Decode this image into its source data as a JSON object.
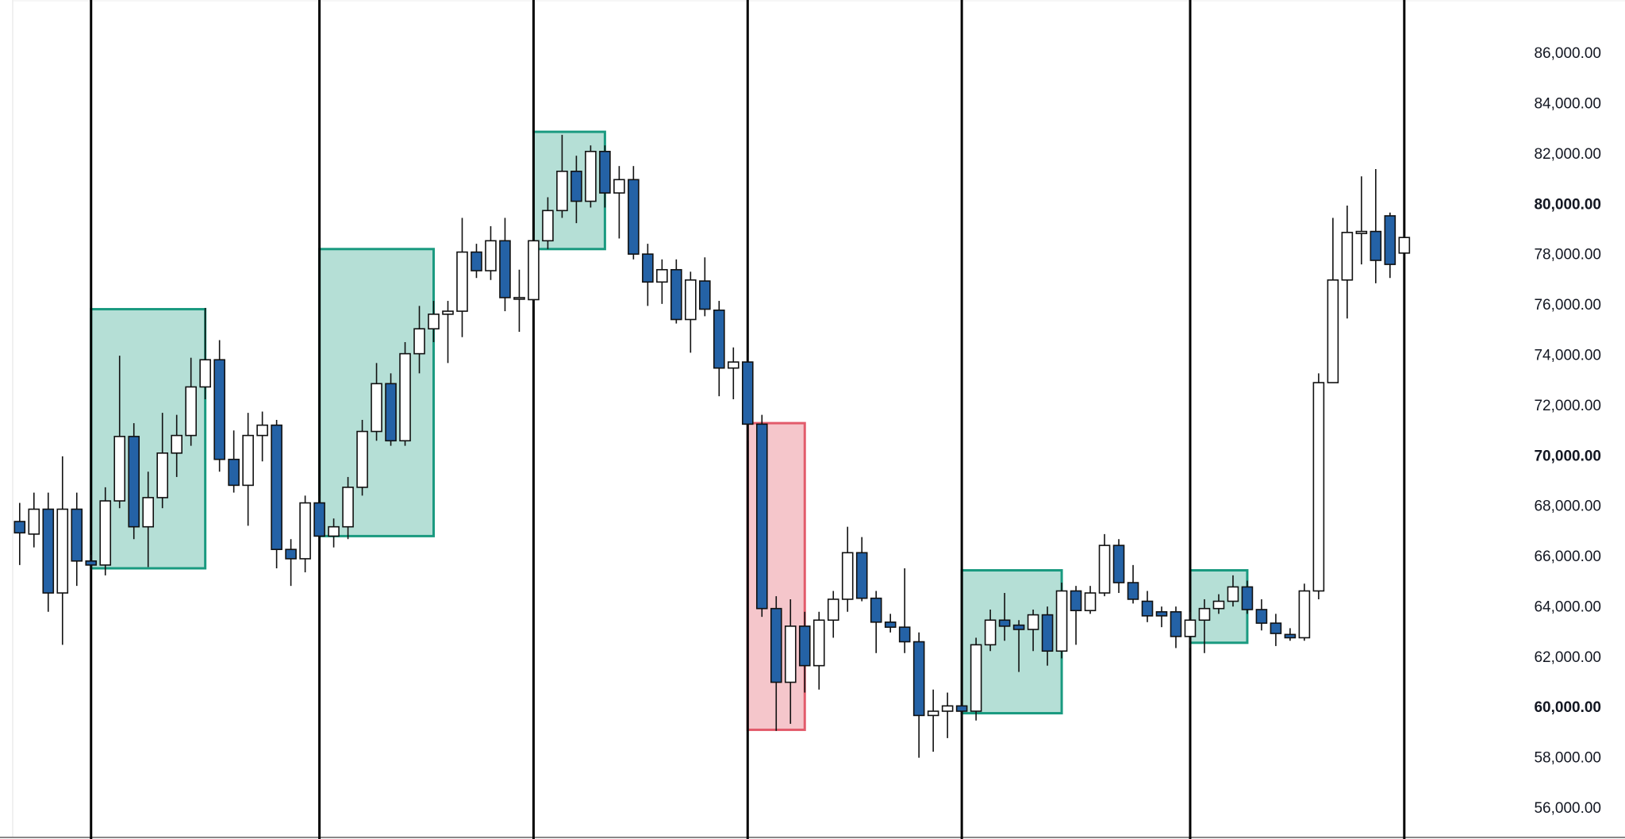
{
  "chart_data": {
    "type": "candlestick",
    "up_color": "#ffffff",
    "down_color": "#2462a6",
    "wick_color": "#111111",
    "ylim": [
      54800,
      88150
    ],
    "yticks": [
      {
        "value": 56000,
        "label": "56,000.00"
      },
      {
        "value": 58000,
        "label": "58,000.00"
      },
      {
        "value": 60000,
        "label": "60,000.00"
      },
      {
        "value": 62000,
        "label": "62,000.00"
      },
      {
        "value": 64000,
        "label": "64,000.00"
      },
      {
        "value": 66000,
        "label": "66,000.00"
      },
      {
        "value": 68000,
        "label": "68,000.00"
      },
      {
        "value": 70000,
        "label": "70,000.00"
      },
      {
        "value": 72000,
        "label": "72,000.00"
      },
      {
        "value": 74000,
        "label": "74,000.00"
      },
      {
        "value": 76000,
        "label": "76,000.00"
      },
      {
        "value": 78000,
        "label": "78,000.00"
      },
      {
        "value": 80000,
        "label": "80,000.00"
      },
      {
        "value": 82000,
        "label": "82,000.00"
      },
      {
        "value": 84000,
        "label": "84,000.00"
      },
      {
        "value": 86000,
        "label": "86,000.00"
      }
    ],
    "open": [
      67420,
      66920,
      67910,
      64580,
      67910,
      65850,
      65690,
      68240,
      70800,
      67210,
      68370,
      70140,
      70840,
      72770,
      73850,
      69890,
      68860,
      70840,
      71250,
      66310,
      65940,
      68160,
      66840,
      67210,
      68780,
      71000,
      72900,
      70630,
      74090,
      75080,
      75660,
      75780,
      78130,
      77390,
      78580,
      76280,
      76240,
      78580,
      79780,
      81340,
      80150,
      82130,
      80480,
      81010,
      78050,
      76940,
      77430,
      75450,
      76980,
      75820,
      73520,
      73760,
      71290,
      63960,
      61030,
      63260,
      61690,
      63500,
      64330,
      66180,
      64370,
      63420,
      63220,
      62640,
      59710,
      59880,
      60090,
      59880,
      62520,
      63500,
      63300,
      63130,
      63710,
      62270,
      64660,
      63880,
      64580,
      66470,
      64990,
      64250,
      63830,
      63830,
      62850,
      63500,
      63960,
      64250,
      64820,
      63920,
      63380,
      62930,
      62800,
      64660,
      72940,
      77020,
      78870,
      78950,
      79570,
      78090
    ],
    "high": [
      68160,
      68570,
      68570,
      70010,
      68570,
      66100,
      68780,
      74010,
      71330,
      69400,
      71740,
      71660,
      73930,
      75910,
      74630,
      71040,
      71740,
      71790,
      71460,
      66720,
      68450,
      68450,
      67540,
      69190,
      71460,
      73720,
      73310,
      74550,
      75990,
      76190,
      76190,
      79490,
      78460,
      79160,
      79490,
      77430,
      79000,
      80310,
      82790,
      81960,
      82370,
      82370,
      81550,
      81550,
      78460,
      77840,
      77840,
      77350,
      77920,
      76190,
      74340,
      74130,
      71660,
      64450,
      64330,
      63830,
      63830,
      64660,
      67210,
      66800,
      64660,
      63750,
      65560,
      63010,
      60740,
      60620,
      60330,
      62800,
      63920,
      64580,
      63500,
      63920,
      64040,
      64990,
      64860,
      64860,
      66920,
      66720,
      65690,
      64660,
      64040,
      64040,
      63830,
      64330,
      64530,
      65280,
      65070,
      64330,
      63750,
      63180,
      64950,
      73310,
      79490,
      79980,
      81140,
      81430,
      79700,
      78870
    ],
    "low": [
      65690,
      66390,
      63830,
      62520,
      64860,
      65480,
      65280,
      67950,
      66720,
      65610,
      67950,
      69190,
      70430,
      72280,
      69400,
      68570,
      67250,
      69810,
      65560,
      64860,
      65400,
      66310,
      66390,
      66720,
      68450,
      70630,
      70430,
      70430,
      73310,
      74550,
      73720,
      74750,
      77100,
      77020,
      75780,
      74960,
      75990,
      78250,
      79490,
      79280,
      79900,
      79900,
      78670,
      77840,
      75990,
      76070,
      75290,
      74130,
      75580,
      72400,
      72280,
      70630,
      63630,
      59100,
      59380,
      60620,
      60740,
      62800,
      63830,
      64250,
      62190,
      63010,
      62190,
      58030,
      58270,
      58810,
      59630,
      59510,
      62270,
      62680,
      61440,
      62270,
      61690,
      61980,
      62520,
      63750,
      64450,
      64580,
      64160,
      63420,
      63220,
      62390,
      62390,
      62190,
      63750,
      64040,
      63750,
      63090,
      62470,
      62680,
      62680,
      64330,
      72940,
      75490,
      77640,
      76890,
      77100,
      77920
    ],
    "close": [
      66970,
      67910,
      64580,
      67910,
      65850,
      65690,
      68240,
      70800,
      67210,
      68370,
      70140,
      70840,
      72770,
      73850,
      69890,
      68860,
      70840,
      71250,
      66310,
      65940,
      68160,
      66840,
      67210,
      68780,
      71000,
      72900,
      70630,
      74090,
      75080,
      75660,
      75780,
      78130,
      77390,
      78580,
      76320,
      76320,
      78580,
      79780,
      81340,
      80150,
      82130,
      80480,
      81010,
      78050,
      76940,
      77430,
      75450,
      77020,
      75860,
      73520,
      73760,
      71290,
      63960,
      61030,
      63260,
      61690,
      63500,
      64330,
      66180,
      64370,
      63420,
      63220,
      62640,
      59710,
      59880,
      60090,
      59880,
      62520,
      63500,
      63260,
      63130,
      63710,
      62270,
      64660,
      63880,
      64580,
      66470,
      64990,
      64330,
      63670,
      63670,
      62850,
      63500,
      63960,
      64250,
      64820,
      63920,
      63380,
      62970,
      62800,
      64660,
      72940,
      77020,
      78910,
      78950,
      77800,
      77640,
      78710
    ],
    "separators": [
      5,
      21,
      36,
      51,
      66,
      82,
      97
    ],
    "zones": [
      {
        "start": 5,
        "end": 13,
        "top": 75860,
        "bottom": 65560,
        "color": "#1a9a80"
      },
      {
        "start": 21,
        "end": 29,
        "top": 78250,
        "bottom": 66840,
        "color": "#1a9a80"
      },
      {
        "start": 36,
        "end": 41,
        "top": 82910,
        "bottom": 78250,
        "color": "#1a9a80"
      },
      {
        "start": 51,
        "end": 55,
        "top": 71330,
        "bottom": 59140,
        "color": "#e25b6b"
      },
      {
        "start": 66,
        "end": 73,
        "top": 65480,
        "bottom": 59800,
        "color": "#1a9a80"
      },
      {
        "start": 82,
        "end": 86,
        "top": 65480,
        "bottom": 62600,
        "color": "#1a9a80"
      }
    ]
  }
}
